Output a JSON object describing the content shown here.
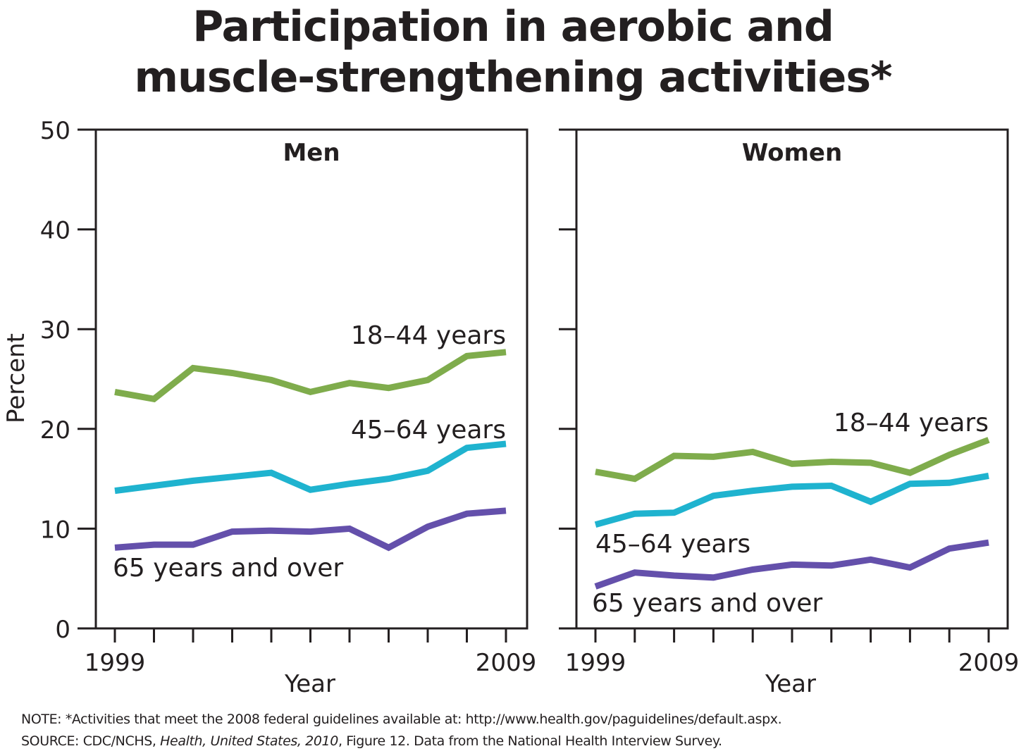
{
  "title_line1": "Participation in aerobic and",
  "title_line2": "muscle-strengthening activities*",
  "note": "NOTE:  *Activities that meet the 2008 federal guidelines available at: http://www.health.gov/paguidelines/default.aspx.",
  "source": {
    "prefix": "SOURCE: CDC/NCHS, ",
    "italic1": "Health, United States, 2010",
    "suffix": ", Figure 12. Data from the National Health Interview Survey."
  },
  "colors": {
    "age_18_44": "#7fac4c",
    "age_45_64": "#1fb3cf",
    "age_65_over": "#6450ab",
    "axis": "#231f20"
  },
  "chart_data": [
    {
      "type": "line",
      "panel": "Men",
      "title": "Men",
      "xlabel": "Year",
      "ylabel": "Percent",
      "x": [
        1999,
        2000,
        2001,
        2002,
        2003,
        2004,
        2005,
        2006,
        2007,
        2008,
        2009
      ],
      "xtick_labels": [
        "1999",
        "2009"
      ],
      "yticks": [
        0,
        10,
        20,
        30,
        40,
        50
      ],
      "ylim": [
        0,
        50
      ],
      "series": [
        {
          "name": "18–44 years",
          "key": "age_18_44",
          "values": [
            23.7,
            23.0,
            26.1,
            25.6,
            24.9,
            23.7,
            24.6,
            24.1,
            24.9,
            27.3,
            27.7
          ]
        },
        {
          "name": "45–64 years",
          "key": "age_45_64",
          "values": [
            13.8,
            14.3,
            14.8,
            15.2,
            15.6,
            13.9,
            14.5,
            15.0,
            15.8,
            18.1,
            18.5
          ]
        },
        {
          "name": "65 years and over",
          "key": "age_65_over",
          "values": [
            8.1,
            8.4,
            8.4,
            9.7,
            9.8,
            9.7,
            10.0,
            8.1,
            10.2,
            11.5,
            11.8
          ]
        }
      ]
    },
    {
      "type": "line",
      "panel": "Women",
      "title": "Women",
      "xlabel": "Year",
      "ylabel": "",
      "x": [
        1999,
        2000,
        2001,
        2002,
        2003,
        2004,
        2005,
        2006,
        2007,
        2008,
        2009
      ],
      "xtick_labels": [
        "1999",
        "2009"
      ],
      "yticks": [
        0,
        10,
        20,
        30,
        40,
        50
      ],
      "ylim": [
        0,
        50
      ],
      "series": [
        {
          "name": "18–44 years",
          "key": "age_18_44",
          "values": [
            15.7,
            15.0,
            17.3,
            17.2,
            17.7,
            16.5,
            16.7,
            16.6,
            15.6,
            17.4,
            18.9
          ]
        },
        {
          "name": "45–64 years",
          "key": "age_45_64",
          "values": [
            10.4,
            11.5,
            11.6,
            13.3,
            13.8,
            14.2,
            14.3,
            12.7,
            14.5,
            14.6,
            15.3
          ]
        },
        {
          "name": "65 years and over",
          "key": "age_65_over",
          "values": [
            4.2,
            5.6,
            5.3,
            5.1,
            5.9,
            6.4,
            6.3,
            6.9,
            6.1,
            8.0,
            8.6
          ]
        }
      ]
    }
  ]
}
